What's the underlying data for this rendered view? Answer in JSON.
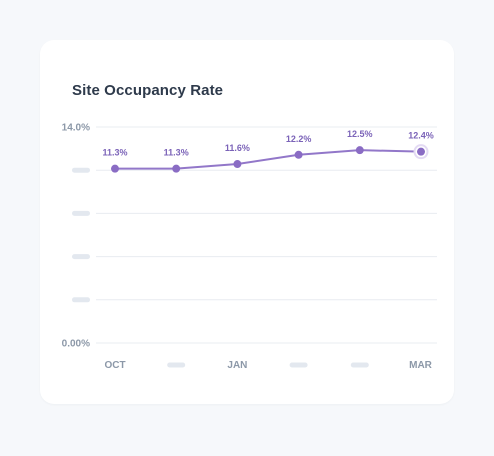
{
  "card": {
    "title": "Site Occupancy Rate"
  },
  "chart_data": {
    "type": "line",
    "title": "Site Occupancy Rate",
    "xlabel": "",
    "ylabel": "",
    "x": [
      "OCT",
      "",
      "JAN",
      "",
      "",
      "MAR"
    ],
    "x_tick_labels_visible": [
      true,
      false,
      true,
      false,
      false,
      true
    ],
    "series": [
      {
        "values": [
          11.3,
          11.3,
          11.6,
          12.2,
          12.5,
          12.4
        ],
        "data_labels": [
          "11.3%",
          "11.3%",
          "11.6%",
          "12.2%",
          "12.5%",
          "12.4%"
        ]
      }
    ],
    "ylim": [
      0,
      14
    ],
    "y_ticks": [
      0,
      2.8,
      5.6,
      8.4,
      11.2,
      14
    ],
    "y_tick_labels": [
      "0.00%",
      "",
      "",
      "",
      "",
      "14.0%"
    ],
    "y_tick_labels_visible": [
      true,
      false,
      false,
      false,
      false,
      true
    ],
    "grid": true,
    "highlighted_point": 5,
    "colors": {
      "line": "#9277c9",
      "point": "#8a6cc4",
      "label": "#7b63b8",
      "grid": "#e8ecf1",
      "axis_text": "#8c98a8",
      "placeholder": "#e3e8ef",
      "highlight_ring": "#e3daf3"
    }
  }
}
